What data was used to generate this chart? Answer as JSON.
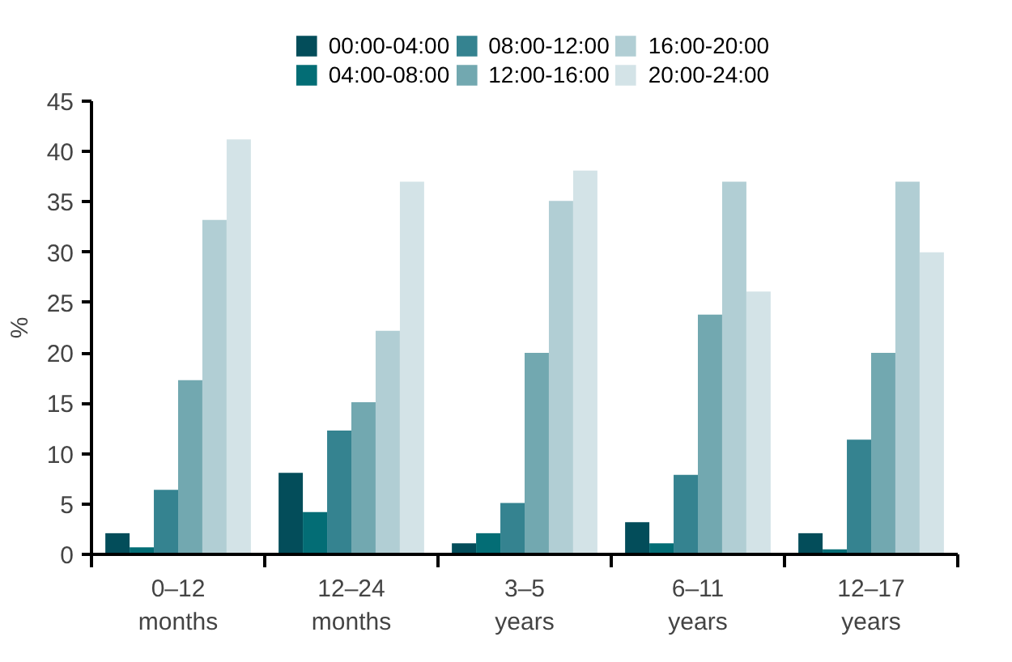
{
  "chart_data": {
    "type": "bar",
    "ylabel": "%",
    "categories": [
      "0–12\nmonths",
      "12–24\nmonths",
      "3–5\nyears",
      "6–11\nyears",
      "12–17\nyears"
    ],
    "series": [
      {
        "name": "00:00-04:00",
        "color": "#034d5a",
        "values": [
          2.1,
          8.1,
          1.1,
          3.2,
          2.1
        ]
      },
      {
        "name": "04:00-08:00",
        "color": "#036d75",
        "values": [
          0.7,
          4.2,
          2.1,
          1.1,
          0.5
        ]
      },
      {
        "name": "08:00-12:00",
        "color": "#358390",
        "values": [
          6.4,
          12.3,
          5.1,
          7.9,
          11.4
        ]
      },
      {
        "name": "12:00-16:00",
        "color": "#72a8b0",
        "values": [
          17.3,
          15.1,
          20.0,
          23.8,
          20.0
        ]
      },
      {
        "name": "16:00-20:00",
        "color": "#b1ced4",
        "values": [
          33.2,
          22.2,
          35.1,
          37.0,
          37.0
        ]
      },
      {
        "name": "20:00-24:00",
        "color": "#d3e3e7",
        "values": [
          41.2,
          37.0,
          38.1,
          26.1,
          30.0
        ]
      }
    ],
    "ylim": [
      0,
      45
    ],
    "yticks": [
      0,
      5,
      10,
      15,
      20,
      25,
      30,
      35,
      40,
      45
    ],
    "grid": false,
    "legend": "top"
  }
}
